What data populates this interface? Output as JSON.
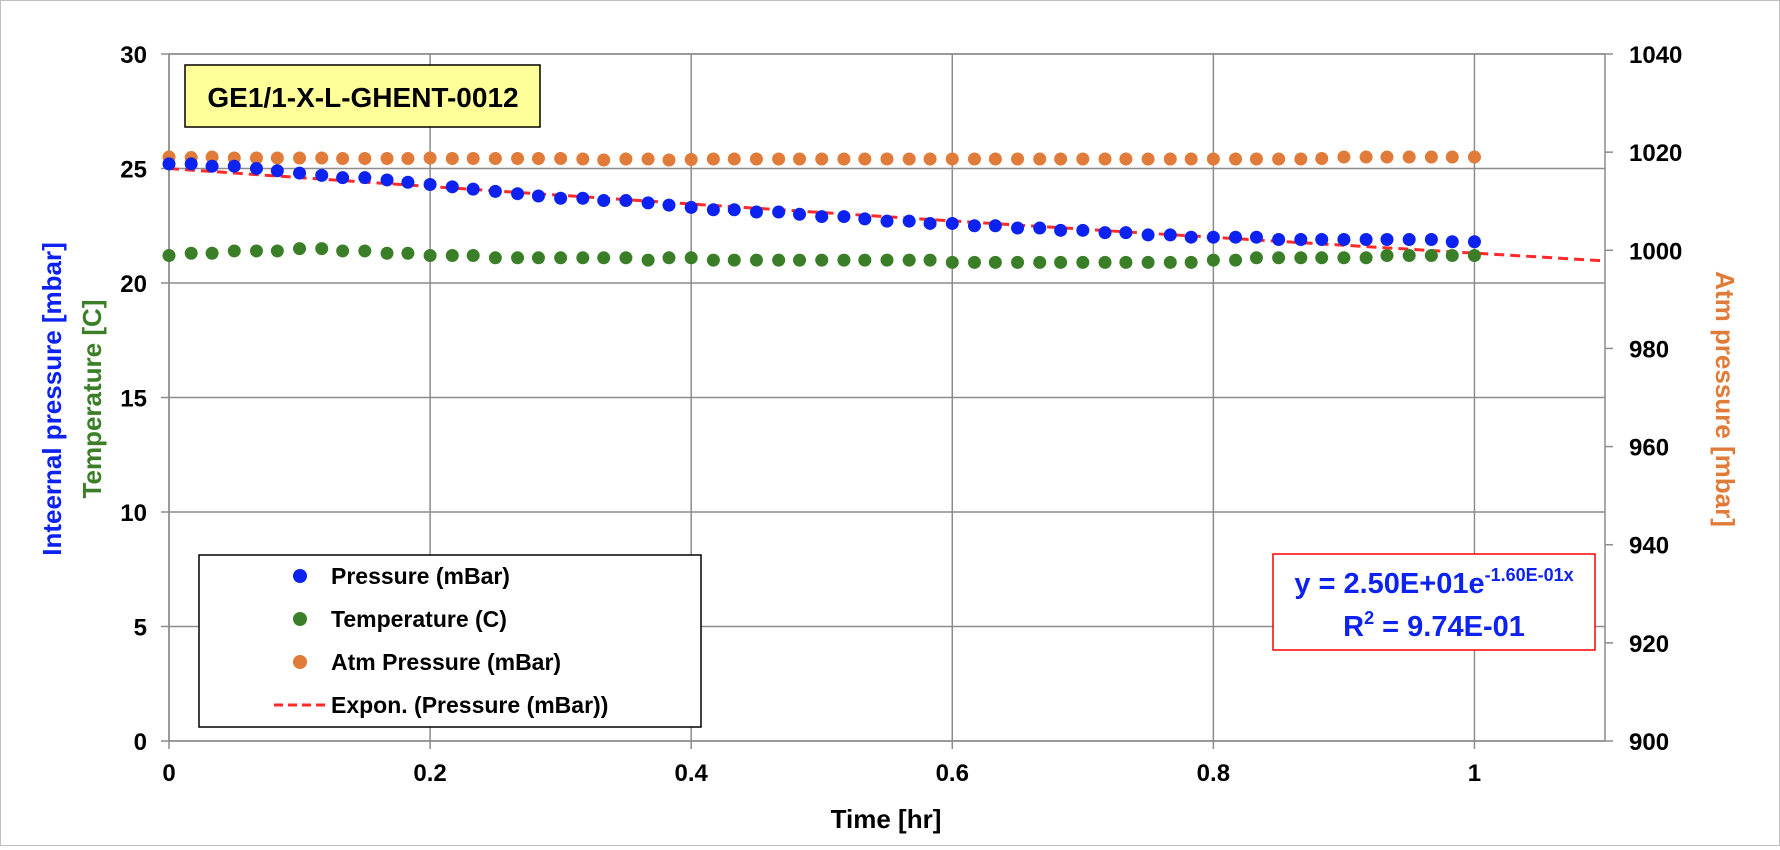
{
  "chart_data": {
    "type": "scatter",
    "title_box": "GE1/1-X-L-GHENT-0012",
    "xlabel": "Time [hr]",
    "ylabel_left_line1": "Inteernal pressure [mbar]",
    "ylabel_left_line2": "Temperature [C]",
    "ylabel_right": "Atm pressure [mbar]",
    "xlim": [
      0,
      1.1
    ],
    "ylim_left": [
      0,
      30
    ],
    "ylim_right": [
      900,
      1040
    ],
    "x_ticks": [
      {
        "value": 0,
        "label": "0"
      },
      {
        "value": 0.2,
        "label": "0.2"
      },
      {
        "value": 0.4,
        "label": "0.4"
      },
      {
        "value": 0.6,
        "label": "0.6"
      },
      {
        "value": 0.8,
        "label": "0.8"
      },
      {
        "value": 1.0,
        "label": "1"
      }
    ],
    "y_left_ticks": [
      {
        "value": 0,
        "label": "0"
      },
      {
        "value": 5,
        "label": "5"
      },
      {
        "value": 10,
        "label": "10"
      },
      {
        "value": 15,
        "label": "15"
      },
      {
        "value": 20,
        "label": "20"
      },
      {
        "value": 25,
        "label": "25"
      },
      {
        "value": 30,
        "label": "30"
      }
    ],
    "y_right_ticks": [
      {
        "value": 900,
        "label": "900"
      },
      {
        "value": 920,
        "label": "920"
      },
      {
        "value": 940,
        "label": "940"
      },
      {
        "value": 960,
        "label": "960"
      },
      {
        "value": 980,
        "label": "980"
      },
      {
        "value": 1000,
        "label": "1000"
      },
      {
        "value": 1020,
        "label": "1020"
      },
      {
        "value": 1040,
        "label": "1040"
      }
    ],
    "grid": true,
    "legend_placement": "bottom-left",
    "x": [
      0,
      0.017,
      0.033,
      0.05,
      0.067,
      0.083,
      0.1,
      0.117,
      0.133,
      0.15,
      0.167,
      0.183,
      0.2,
      0.217,
      0.233,
      0.25,
      0.267,
      0.283,
      0.3,
      0.317,
      0.333,
      0.35,
      0.367,
      0.383,
      0.4,
      0.417,
      0.433,
      0.45,
      0.467,
      0.483,
      0.5,
      0.517,
      0.533,
      0.55,
      0.567,
      0.583,
      0.6,
      0.617,
      0.633,
      0.65,
      0.667,
      0.683,
      0.7,
      0.717,
      0.733,
      0.75,
      0.767,
      0.783,
      0.8,
      0.817,
      0.833,
      0.85,
      0.867,
      0.883,
      0.9,
      0.917,
      0.933,
      0.95,
      0.967,
      0.983,
      1.0
    ],
    "series": [
      {
        "name": "Pressure (mBar)",
        "axis": "left",
        "color": "#0b22f0",
        "values": [
          25.2,
          25.2,
          25.1,
          25.1,
          25.0,
          24.9,
          24.8,
          24.7,
          24.6,
          24.6,
          24.5,
          24.4,
          24.3,
          24.2,
          24.1,
          24.0,
          23.9,
          23.8,
          23.7,
          23.7,
          23.6,
          23.6,
          23.5,
          23.4,
          23.3,
          23.2,
          23.2,
          23.1,
          23.1,
          23.0,
          22.9,
          22.9,
          22.8,
          22.7,
          22.7,
          22.6,
          22.6,
          22.5,
          22.5,
          22.4,
          22.4,
          22.3,
          22.3,
          22.2,
          22.2,
          22.1,
          22.1,
          22.0,
          22.0,
          22.0,
          22.0,
          21.9,
          21.9,
          21.9,
          21.9,
          21.9,
          21.9,
          21.9,
          21.9,
          21.8,
          21.8
        ]
      },
      {
        "name": "Temperature (C)",
        "axis": "left",
        "color": "#3a7f27",
        "values": [
          21.2,
          21.3,
          21.3,
          21.4,
          21.4,
          21.4,
          21.5,
          21.5,
          21.4,
          21.4,
          21.3,
          21.3,
          21.2,
          21.2,
          21.2,
          21.1,
          21.1,
          21.1,
          21.1,
          21.1,
          21.1,
          21.1,
          21.0,
          21.1,
          21.1,
          21.0,
          21.0,
          21.0,
          21.0,
          21.0,
          21.0,
          21.0,
          21.0,
          21.0,
          21.0,
          21.0,
          20.9,
          20.9,
          20.9,
          20.9,
          20.9,
          20.9,
          20.9,
          20.9,
          20.9,
          20.9,
          20.9,
          20.9,
          21.0,
          21.0,
          21.1,
          21.1,
          21.1,
          21.1,
          21.1,
          21.1,
          21.2,
          21.2,
          21.2,
          21.2,
          21.2
        ]
      },
      {
        "name": "Atm Pressure (mBar)",
        "axis": "right",
        "color": "#e07b39",
        "values": [
          1019.0,
          1018.9,
          1019.0,
          1018.8,
          1018.8,
          1018.8,
          1018.8,
          1018.8,
          1018.7,
          1018.7,
          1018.7,
          1018.7,
          1018.8,
          1018.7,
          1018.7,
          1018.7,
          1018.7,
          1018.7,
          1018.7,
          1018.6,
          1018.4,
          1018.6,
          1018.6,
          1018.4,
          1018.5,
          1018.6,
          1018.6,
          1018.6,
          1018.6,
          1018.6,
          1018.6,
          1018.6,
          1018.6,
          1018.6,
          1018.6,
          1018.6,
          1018.6,
          1018.6,
          1018.6,
          1018.6,
          1018.6,
          1018.6,
          1018.6,
          1018.6,
          1018.6,
          1018.6,
          1018.6,
          1018.6,
          1018.6,
          1018.6,
          1018.6,
          1018.6,
          1018.6,
          1018.7,
          1019.0,
          1019.0,
          1019.0,
          1019.0,
          1019.0,
          1019.0,
          1019.0
        ]
      }
    ],
    "trendline": {
      "name": "Expon.  (Pressure (mBar))",
      "type": "exponential",
      "a": 25.0,
      "b": -0.16,
      "x_range": [
        0,
        1.1
      ],
      "color": "#ff2b2b",
      "equation_main": "y = 2.50E+01e",
      "equation_exponent": "-1.60E-01x",
      "r_squared_prefix": "R",
      "r_squared_sup": "2",
      "r_squared_value": " = 9.74E-01"
    },
    "legend": [
      {
        "label": "Pressure (mBar)",
        "kind": "marker",
        "color": "#0b22f0"
      },
      {
        "label": "Temperature (C)",
        "kind": "marker",
        "color": "#3a7f27"
      },
      {
        "label": "Atm Pressure (mBar)",
        "kind": "marker",
        "color": "#e07b39"
      },
      {
        "label": "Expon.  (Pressure (mBar))",
        "kind": "dashed-line",
        "color": "#ff2b2b"
      }
    ],
    "colors": {
      "left_label_line1": "#0b22f0",
      "left_label_line2": "#3a7f27",
      "right_label": "#e07b39",
      "title_box_fill": "#ffff99",
      "equation_text": "#0b22f0",
      "equation_border": "#ff0000"
    }
  }
}
